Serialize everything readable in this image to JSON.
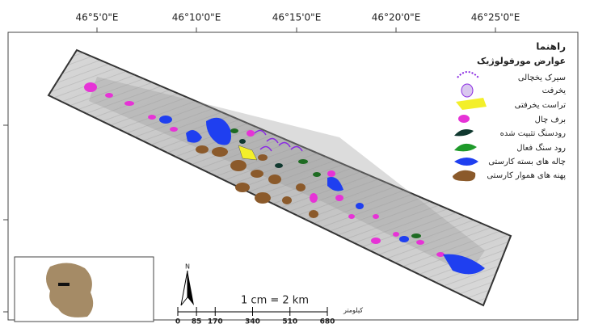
{
  "map": {
    "longitude_labels": [
      "46°5'0\"E",
      "46°10'0\"E",
      "46°15'0\"E",
      "46°20'0\"E",
      "46°25'0\"E"
    ],
    "legend": {
      "title": "راهنما",
      "subtitle": "عوارض مورفولوژیک",
      "items": [
        "سیرک یخچالی",
        "یخرفت",
        "تراست یخرفتی",
        "برف چال",
        "رودسنگ تثبیت شده",
        "رود سنگ فعال",
        "چاله های بسته کارستی",
        "پهنه های هموار کارستی"
      ]
    },
    "north": "N",
    "scale": {
      "ratio": "1 cm = 2 km",
      "ticks": [
        0,
        85,
        170,
        340,
        510,
        680
      ],
      "unit": "کیلومتر"
    }
  }
}
